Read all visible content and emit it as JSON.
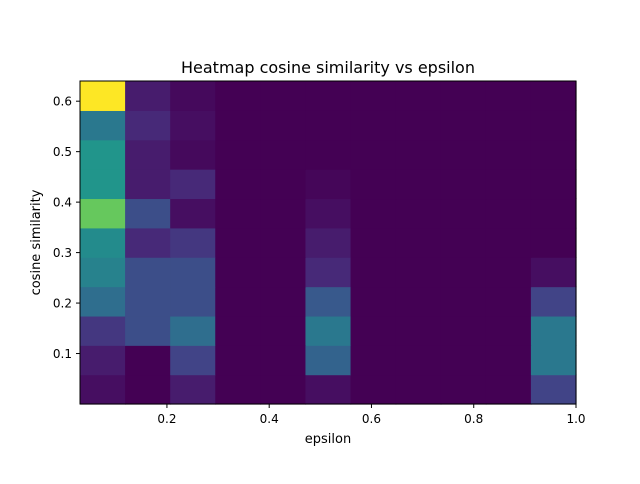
{
  "chart_data": {
    "type": "heatmap",
    "title": "Heatmap cosine similarity vs epsilon",
    "xlabel": "epsilon",
    "ylabel": "cosine similarity",
    "xlim": [
      0.03,
      1.0
    ],
    "ylim": [
      0.0,
      0.64
    ],
    "x_ticks": [
      0.2,
      0.4,
      0.6,
      0.8,
      1.0
    ],
    "x_tick_labels": [
      "0.2",
      "0.4",
      "0.6",
      "0.8",
      "1.0"
    ],
    "y_ticks": [
      0.1,
      0.2,
      0.3,
      0.4,
      0.5,
      0.6
    ],
    "y_tick_labels": [
      "0.1",
      "0.2",
      "0.3",
      "0.4",
      "0.5",
      "0.6"
    ],
    "colormap": "viridis",
    "x_bin_edges": [
      0.03,
      0.1182,
      0.2064,
      0.2945,
      0.3827,
      0.4709,
      0.5591,
      0.6473,
      0.7355,
      0.8236,
      0.9118,
      1.0
    ],
    "y_bin_edges": [
      0.0,
      0.0582,
      0.1164,
      0.1745,
      0.2327,
      0.2909,
      0.3491,
      0.4073,
      0.4655,
      0.5236,
      0.5818,
      0.64
    ],
    "values": [
      [
        0.05,
        0.0,
        0.1,
        0.0,
        0.0,
        0.05,
        0.0,
        0.0,
        0.0,
        0.0,
        0.25
      ],
      [
        0.1,
        0.0,
        0.25,
        0.0,
        0.0,
        0.4,
        0.0,
        0.0,
        0.0,
        0.0,
        0.5
      ],
      [
        0.2,
        0.3,
        0.45,
        0.0,
        0.0,
        0.5,
        0.0,
        0.0,
        0.0,
        0.0,
        0.5
      ],
      [
        0.45,
        0.3,
        0.3,
        0.0,
        0.0,
        0.35,
        0.0,
        0.0,
        0.0,
        0.0,
        0.25
      ],
      [
        0.55,
        0.3,
        0.3,
        0.0,
        0.0,
        0.15,
        0.0,
        0.0,
        0.0,
        0.0,
        0.05
      ],
      [
        0.6,
        0.15,
        0.2,
        0.0,
        0.0,
        0.1,
        0.0,
        0.0,
        0.0,
        0.0,
        0.0
      ],
      [
        0.85,
        0.3,
        0.05,
        0.0,
        0.0,
        0.05,
        0.0,
        0.0,
        0.0,
        0.0,
        0.0
      ],
      [
        0.65,
        0.1,
        0.15,
        0.0,
        0.0,
        0.02,
        0.0,
        0.0,
        0.0,
        0.0,
        0.0
      ],
      [
        0.65,
        0.1,
        0.03,
        0.0,
        0.0,
        0.0,
        0.0,
        0.0,
        0.0,
        0.0,
        0.0
      ],
      [
        0.5,
        0.15,
        0.05,
        0.0,
        0.0,
        0.0,
        0.0,
        0.0,
        0.0,
        0.0,
        0.0
      ],
      [
        1.0,
        0.1,
        0.03,
        0.0,
        0.0,
        0.0,
        0.0,
        0.0,
        0.0,
        0.0,
        0.0
      ]
    ],
    "grid": false,
    "legend": false
  }
}
